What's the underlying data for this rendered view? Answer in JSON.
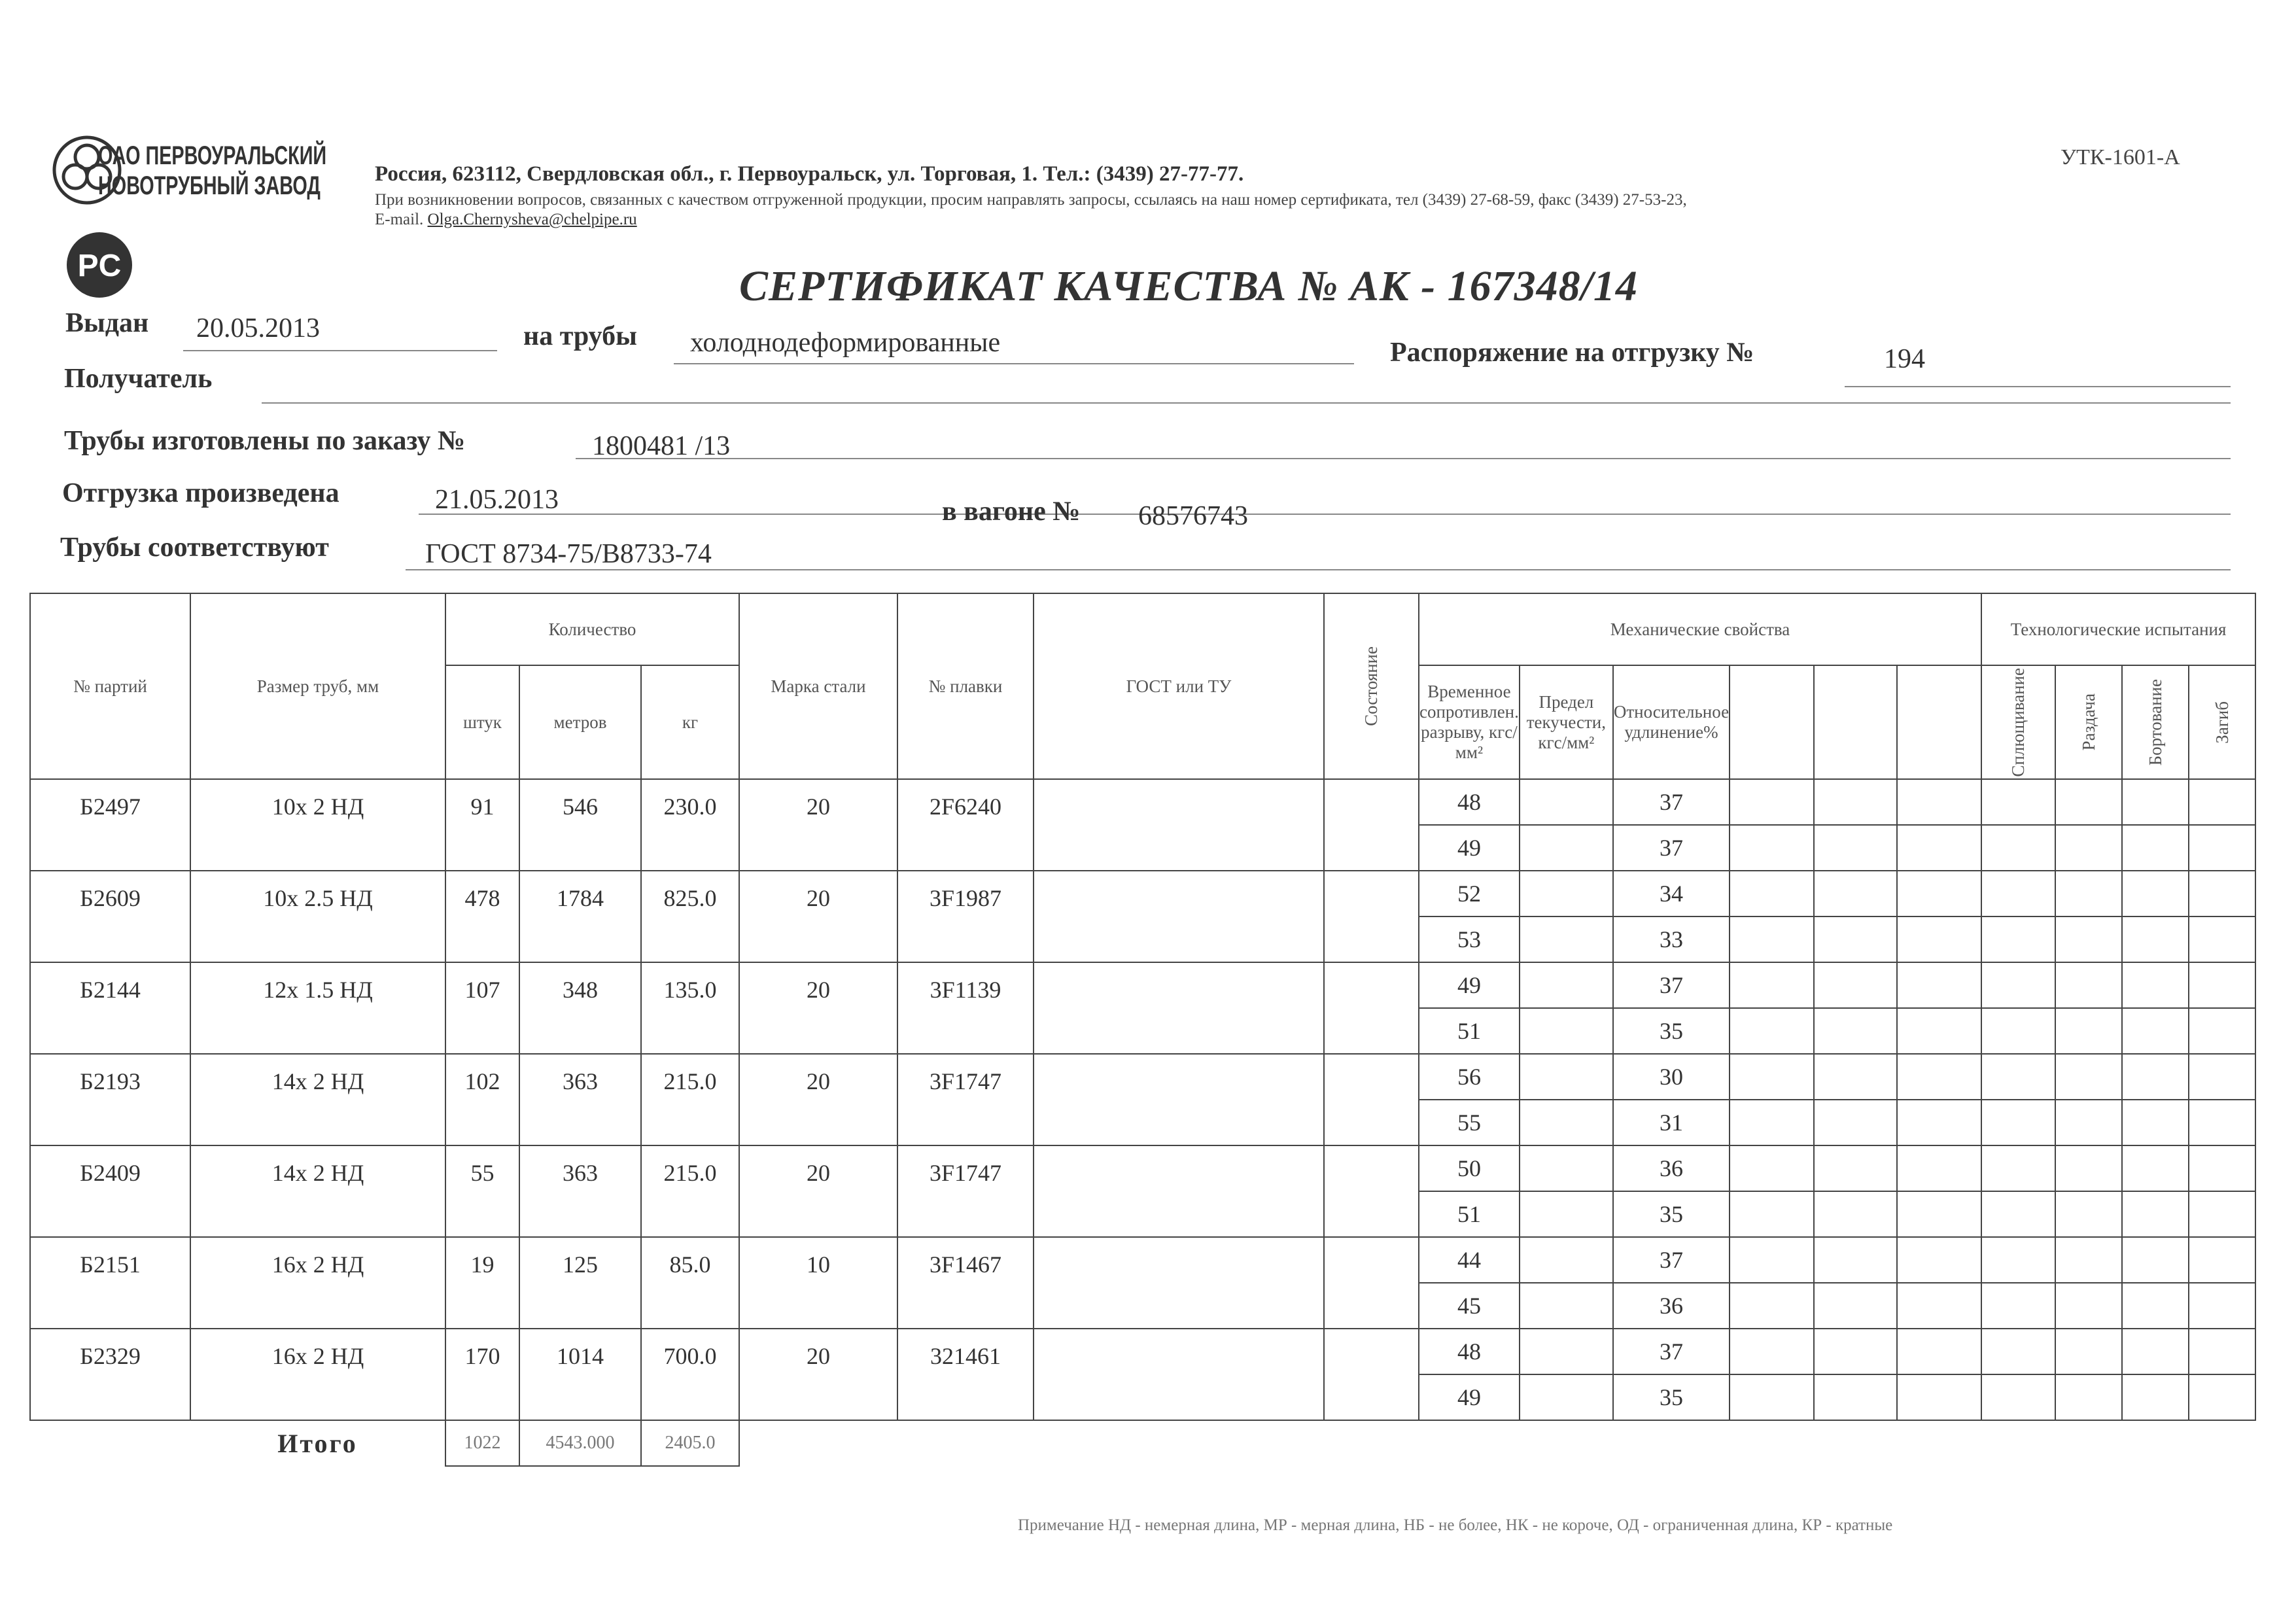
{
  "header": {
    "company_line1": "ОАО ПЕРВОУРАЛЬСКИЙ",
    "company_line2": "НОВОТРУБНЫЙ ЗАВОД",
    "address": "Россия, 623112, Свердловская обл., г. Первоуральск, ул. Торговая, 1. Тел.: (3439) 27-77-77.",
    "contact_note": "При возникновении вопросов, связанных с качеством отгруженной продукции, просим направлять запросы, ссылаясь на наш номер сертификата, тел (3439) 27-68-59, факс (3439) 27-53-23,",
    "email_label": "E-mail.",
    "email": "Olga.Chernysheva@chelpipe.ru",
    "form_code": "УТК-1601-А",
    "cert_mark": "PC"
  },
  "title": "СЕРТИФИКАТ КАЧЕСТВА   №  АК -  167348/14",
  "fields": {
    "issued_label": "Выдан",
    "issued": "20.05.2013",
    "pipes_label": "на трубы",
    "pipes": "холоднодеформированные",
    "order_label": "Распоряжение на отгрузку №",
    "order": "194",
    "recipient_label": "Получатель",
    "recipient": "",
    "made_label": "Трубы изготовлены по заказу №",
    "made": "1800481  /13",
    "shipped_label": "Отгрузка произведена",
    "shipped": "21.05.2013",
    "wagon_label": "в вагоне №",
    "wagon": "68576743",
    "conform_label": "Трубы соответствуют",
    "conform": "ГОСТ 8734-75/В8733-74"
  },
  "table": {
    "headers": {
      "batch": "№ партий",
      "size": "Размер труб, мм",
      "quantity": "Количество",
      "pcs": "штук",
      "meters": "метров",
      "kg": "кг",
      "steel": "Марка стали",
      "heat": "№ плавки",
      "gost": "ГОСТ или ТУ",
      "state": "Состояние",
      "mech": "Механические свойства",
      "tensile": "Временное сопротивлен. разрыву, кгс/мм²",
      "yield": "Предел текучести, кгс/мм²",
      "elong": "Относительное удлинение%",
      "tech": "Технологические испытания",
      "flatten": "Сплющивание",
      "flare": "Раздача",
      "flange": "Бортование",
      "bend": "Загиб"
    },
    "batches": [
      {
        "no": "Б2497",
        "size": "10х 2 НД",
        "pcs": "91",
        "m": "546",
        "kg": "230.0",
        "steel": "20",
        "heat": "2F6240"
      },
      {
        "no": "Б2609",
        "size": "10х 2.5 НД",
        "pcs": "478",
        "m": "1784",
        "kg": "825.0",
        "steel": "20",
        "heat": "3F1987"
      },
      {
        "no": "Б2144",
        "size": "12х 1.5 НД",
        "pcs": "107",
        "m": "348",
        "kg": "135.0",
        "steel": "20",
        "heat": "3F1139"
      },
      {
        "no": "Б2193",
        "size": "14х 2 НД",
        "pcs": "102",
        "m": "363",
        "kg": "215.0",
        "steel": "20",
        "heat": "3F1747"
      },
      {
        "no": "Б2409",
        "size": "14х 2 НД",
        "pcs": "55",
        "m": "363",
        "kg": "215.0",
        "steel": "20",
        "heat": "3F1747"
      },
      {
        "no": "Б2151",
        "size": "16х 2 НД",
        "pcs": "19",
        "m": "125",
        "kg": "85.0",
        "steel": "10",
        "heat": "3F1467"
      },
      {
        "no": "Б2329",
        "size": "16х 2 НД",
        "pcs": "170",
        "m": "1014",
        "kg": "700.0",
        "steel": "20",
        "heat": "321461"
      }
    ],
    "mech": [
      {
        "t": "48",
        "e": "37"
      },
      {
        "t": "49",
        "e": "37"
      },
      {
        "t": "52",
        "e": "34"
      },
      {
        "t": "53",
        "e": "33"
      },
      {
        "t": "49",
        "e": "37"
      },
      {
        "t": "51",
        "e": "35"
      },
      {
        "t": "56",
        "e": "30"
      },
      {
        "t": "55",
        "e": "31"
      },
      {
        "t": "50",
        "e": "36"
      },
      {
        "t": "51",
        "e": "35"
      },
      {
        "t": "44",
        "e": "37"
      },
      {
        "t": "45",
        "e": "36"
      },
      {
        "t": "48",
        "e": "37"
      },
      {
        "t": "49",
        "e": "35"
      }
    ],
    "total_label": "Итого",
    "total": {
      "pcs": "1022",
      "m": "4543.000",
      "kg": "2405.0"
    }
  },
  "note": "Примечание  НД - немерная длина, МР - мерная длина, НБ - не более, НК - не короче, ОД - ограниченная длина, КР - кратные"
}
